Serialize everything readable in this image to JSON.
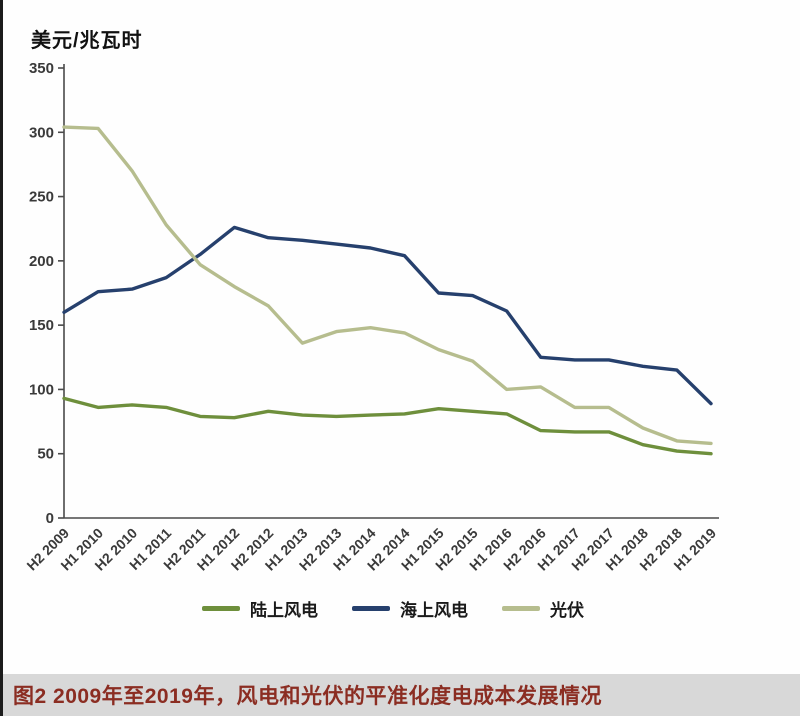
{
  "page": {
    "caption": "图2 2009年至2019年，风电和光伏的平准化度电成本发展情况",
    "caption_color": "#8b2d22",
    "caption_bg": "#d8d8d8"
  },
  "chart_data": {
    "type": "line",
    "title": "",
    "ylabel": "美元/兆瓦时",
    "xlabel": "",
    "ylim": [
      0,
      350
    ],
    "yticks": [
      0,
      50,
      100,
      150,
      200,
      250,
      300,
      350
    ],
    "grid": false,
    "legend_position": "bottom",
    "axis_color": "#4a4a4a",
    "categories": [
      "H2 2009",
      "H1 2010",
      "H2 2010",
      "H1 2011",
      "H2 2011",
      "H1 2012",
      "H2 2012",
      "H1 2013",
      "H2 2013",
      "H1 2014",
      "H2 2014",
      "H1 2015",
      "H2 2015",
      "H1 2016",
      "H2 2016",
      "H1 2017",
      "H2 2017",
      "H1 2018",
      "H2 2018",
      "H1 2019"
    ],
    "series": [
      {
        "id": "onshore-wind",
        "name": "陆上风电",
        "color": "#6e8f3c",
        "values": [
          93,
          86,
          88,
          86,
          79,
          78,
          83,
          80,
          79,
          80,
          81,
          85,
          83,
          81,
          68,
          67,
          67,
          57,
          52,
          50
        ]
      },
      {
        "id": "offshore-wind",
        "name": "海上风电",
        "color": "#26406d",
        "values": [
          160,
          176,
          178,
          187,
          205,
          226,
          218,
          216,
          213,
          210,
          204,
          175,
          173,
          161,
          125,
          123,
          123,
          118,
          115,
          89
        ]
      },
      {
        "id": "solar-pv",
        "name": "光伏",
        "color": "#b6bd8e",
        "values": [
          304,
          303,
          270,
          228,
          197,
          180,
          165,
          136,
          145,
          148,
          144,
          131,
          122,
          100,
          102,
          86,
          86,
          70,
          60,
          58
        ]
      }
    ]
  }
}
